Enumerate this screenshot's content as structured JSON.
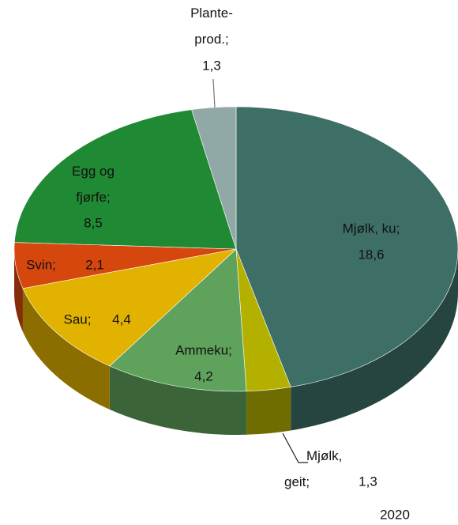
{
  "chart_data": {
    "type": "pie3d",
    "categories": [
      "Mjølk, ku;",
      "Mjølk, geit;",
      "Ammeku;",
      "Sau;",
      "Svin;",
      "Egg og fjørfe;",
      "Plante-prod.;"
    ],
    "values": [
      18.6,
      1.3,
      4.2,
      4.4,
      2.1,
      8.5,
      1.3
    ],
    "value_labels": [
      "18,6",
      "1,3",
      "4,2",
      "4,4",
      "2,1",
      "8,5",
      "1,3"
    ],
    "colors": [
      "#3e6f67",
      "#b3b000",
      "#5fa25c",
      "#e2b200",
      "#d6470e",
      "#1f8a33",
      "#90a9a6"
    ],
    "annotation": "2020"
  }
}
